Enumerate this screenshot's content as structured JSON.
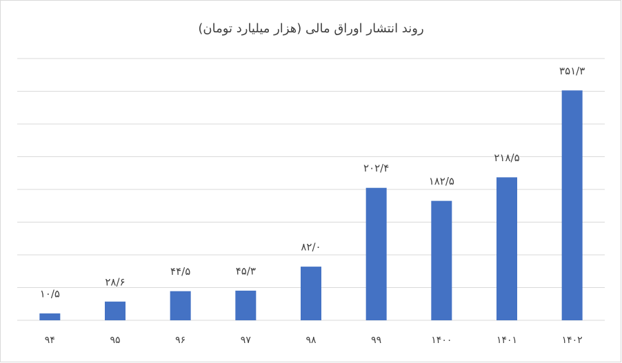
{
  "chart_data": {
    "type": "bar",
    "title": "روند انتشار اوراق مالی (هزار میلیارد تومان)",
    "categories": [
      "۹۴",
      "۹۵",
      "۹۶",
      "۹۷",
      "۹۸",
      "۹۹",
      "۱۴۰۰",
      "۱۴۰۱",
      "۱۴۰۲"
    ],
    "values": [
      10.5,
      28.6,
      44.5,
      45.3,
      82.0,
      202.4,
      182.5,
      218.5,
      351.3
    ],
    "value_labels": [
      "۱۰/۵",
      "۲۸/۶",
      "۴۴/۵",
      "۴۵/۳",
      "۸۲/۰",
      "۲۰۲/۴",
      "۱۸۲/۵",
      "۲۱۸/۵",
      "۳۵۱/۳"
    ],
    "color": "#4472c4",
    "ylim": [
      0,
      400
    ],
    "yticks": [
      0,
      50,
      100,
      150,
      200,
      250,
      300,
      350,
      400
    ],
    "grid": true
  }
}
